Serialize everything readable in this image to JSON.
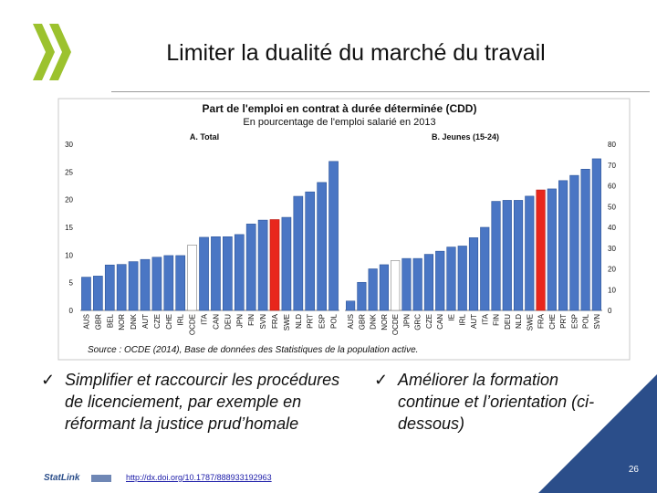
{
  "slide": {
    "title": "Limiter la dualité du marché du travail",
    "page_number": "26",
    "statlink_label": "StatLink",
    "link": "http://dx.doi.org/10.1787/888933192963"
  },
  "bullets": [
    {
      "mark": "✓",
      "text": "Simplifier et raccourcir les procédures de licenciement, par exemple en réformant la justice prud’homale"
    },
    {
      "mark": "✓",
      "text": "Améliorer la formation continue et l’orientation (ci-dessous)"
    }
  ],
  "colors": {
    "bar": "#4a76c4",
    "oecd": "#ffffff",
    "france": "#e8261c",
    "logo": "#9cc22e",
    "corner": "#2b4e8a"
  },
  "chart_data": {
    "type": "bar",
    "title": "Part de l'emploi en contrat à durée déterminée (CDD)",
    "subtitle": "En pourcentage de l'emploi salarié en 2013",
    "source": "Source : OCDE (2014), Base de données des Statistiques de la population active.",
    "panels": [
      {
        "name": "A. Total",
        "ylim": [
          0,
          30
        ],
        "yticks": [
          0,
          5,
          10,
          15,
          20,
          25,
          30
        ],
        "axis_side": "left",
        "categories": [
          "AUS",
          "GBR",
          "BEL",
          "NOR",
          "DNK",
          "AUT",
          "CZE",
          "CHE",
          "IRL",
          "OCDE",
          "ITA",
          "CAN",
          "DEU",
          "JPN",
          "FIN",
          "SVN",
          "FRA",
          "SWE",
          "NLD",
          "PRT",
          "ESP",
          "POL"
        ],
        "values": [
          6.0,
          6.2,
          8.2,
          8.3,
          8.8,
          9.2,
          9.6,
          9.9,
          9.9,
          11.8,
          13.2,
          13.3,
          13.3,
          13.7,
          15.6,
          16.3,
          16.4,
          16.8,
          20.6,
          21.4,
          23.1,
          26.9
        ],
        "highlight": {
          "OCDE": "oecd",
          "FRA": "france"
        }
      },
      {
        "name": "B. Jeunes (15-24)",
        "ylim": [
          0,
          80
        ],
        "yticks": [
          0,
          10,
          20,
          30,
          40,
          50,
          60,
          70,
          80
        ],
        "axis_side": "right",
        "categories": [
          "AUS",
          "GBR",
          "DNK",
          "NOR",
          "OCDE",
          "JPN",
          "GRC",
          "CZE",
          "CAN",
          "IE",
          "IRL",
          "AUT",
          "ITA",
          "FIN",
          "DEU",
          "NLD",
          "SWE",
          "FRA",
          "CHE",
          "PRT",
          "ESP",
          "POL",
          "SVN"
        ],
        "values": [
          4.5,
          13.5,
          20.0,
          22.0,
          24.0,
          25.0,
          25.0,
          27.0,
          28.5,
          30.5,
          31.0,
          35.0,
          40.0,
          52.5,
          53.0,
          53.0,
          55.0,
          58.0,
          58.5,
          62.5,
          65.0,
          68.0,
          73.0
        ],
        "highlight": {
          "OCDE": "oecd",
          "FRA": "france"
        }
      }
    ]
  }
}
